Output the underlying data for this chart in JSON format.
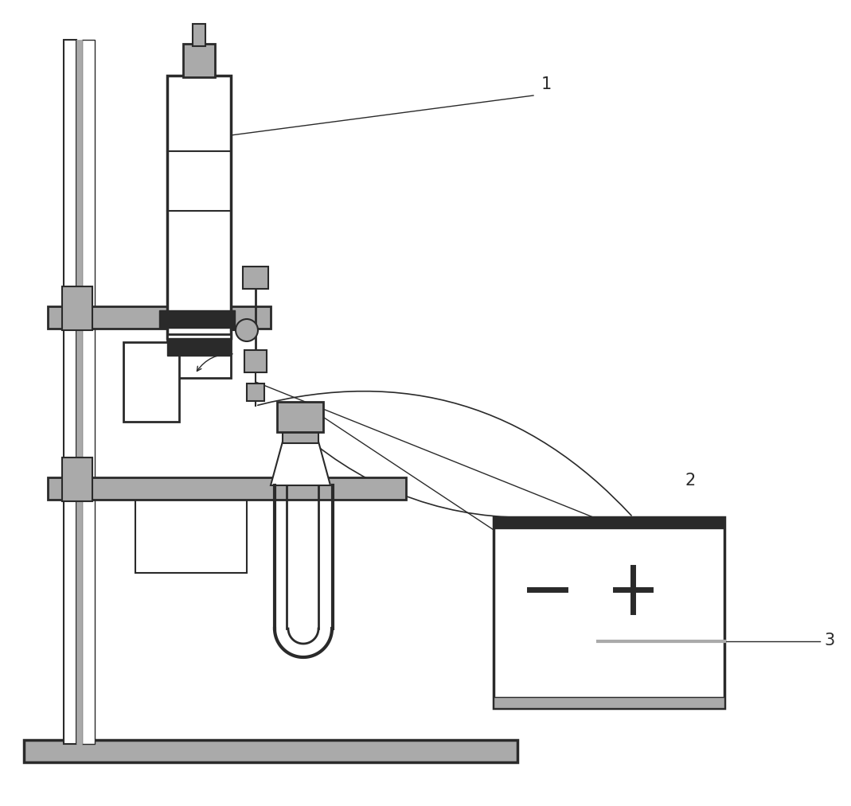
{
  "bg_color": "#ffffff",
  "dc": "#2a2a2a",
  "gc": "#aaaaaa",
  "lgc": "#dddddd",
  "label_1": "1",
  "label_2": "2",
  "label_3": "3",
  "fig_w": 10.69,
  "fig_h": 10.13
}
